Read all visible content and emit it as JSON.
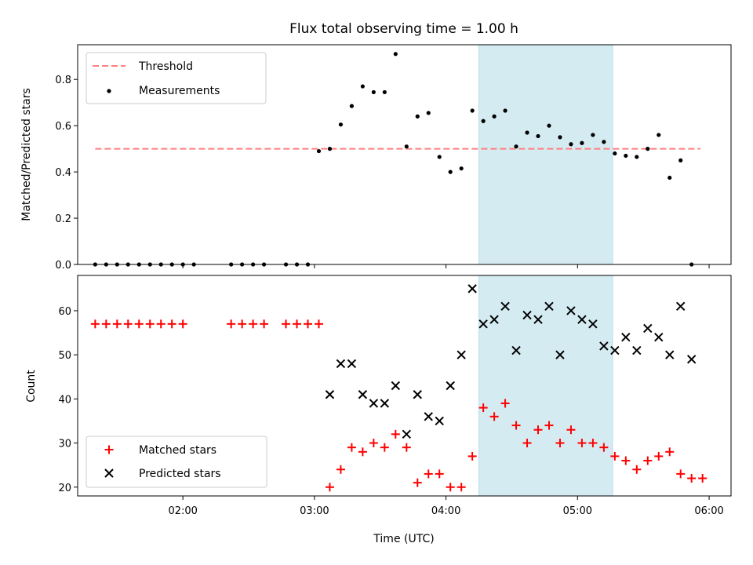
{
  "chart_data": [
    {
      "type": "scatter",
      "title": "Flux total observing time = 1.00 h",
      "xlabel": "",
      "ylabel": "Matched/Predicted stars",
      "ylim": [
        0,
        0.95
      ],
      "xlim": [
        "01:12",
        "06:10"
      ],
      "yticks": [
        "0.0",
        "0.2",
        "0.4",
        "0.6",
        "0.8"
      ],
      "grid": false,
      "legend_position": "top-left",
      "highlight_span": {
        "start": "04:15",
        "end": "05:16",
        "color": "#add8e6"
      },
      "threshold": {
        "name": "Threshold",
        "value": 0.5,
        "x_start": "01:20",
        "x_end": "05:56",
        "color": "#ff7f7f",
        "style": "dashed"
      },
      "series": [
        {
          "name": "Measurements",
          "color": "#000000",
          "marker": "dot",
          "x": [
            "01:20",
            "01:25",
            "01:30",
            "01:35",
            "01:40",
            "01:45",
            "01:50",
            "01:55",
            "02:00",
            "02:05",
            "02:22",
            "02:27",
            "02:32",
            "02:37",
            "02:47",
            "02:52",
            "02:57",
            "03:02",
            "03:07",
            "03:12",
            "03:17",
            "03:22",
            "03:27",
            "03:32",
            "03:37",
            "03:42",
            "03:47",
            "03:52",
            "03:57",
            "04:02",
            "04:07",
            "04:12",
            "04:17",
            "04:22",
            "04:27",
            "04:32",
            "04:37",
            "04:42",
            "04:47",
            "04:52",
            "04:57",
            "05:02",
            "05:07",
            "05:12",
            "05:17",
            "05:22",
            "05:27",
            "05:32",
            "05:37",
            "05:42",
            "05:47",
            "05:52"
          ],
          "y": [
            0,
            0,
            0,
            0,
            0,
            0,
            0,
            0,
            0,
            0,
            0,
            0,
            0,
            0,
            0,
            0,
            0,
            0.49,
            0.5,
            0.605,
            0.685,
            0.77,
            0.745,
            0.745,
            0.91,
            0.51,
            0.64,
            0.655,
            0.465,
            0.4,
            0.415,
            0.665,
            0.62,
            0.64,
            0.665,
            0.51,
            0.57,
            0.555,
            0.6,
            0.55,
            0.52,
            0.525,
            0.56,
            0.53,
            0.48,
            0.47,
            0.465,
            0.5,
            0.56,
            0.375,
            0.45,
            0
          ]
        }
      ]
    },
    {
      "type": "scatter",
      "xlabel": "Time (UTC)",
      "ylabel": "Count",
      "ylim": [
        18,
        68
      ],
      "xlim": [
        "01:12",
        "06:10"
      ],
      "xticks": [
        "02:00",
        "03:00",
        "04:00",
        "05:00",
        "06:00"
      ],
      "yticks": [
        "20",
        "30",
        "40",
        "50",
        "60"
      ],
      "grid": false,
      "legend_position": "bottom-left",
      "highlight_span": {
        "start": "04:15",
        "end": "05:16",
        "color": "#add8e6"
      },
      "series": [
        {
          "name": "Matched stars",
          "color": "#ff0000",
          "marker": "plus",
          "x": [
            "01:20",
            "01:25",
            "01:30",
            "01:35",
            "01:40",
            "01:45",
            "01:50",
            "01:55",
            "02:00",
            "02:22",
            "02:27",
            "02:32",
            "02:37",
            "02:47",
            "02:52",
            "02:57",
            "03:02",
            "03:07",
            "03:12",
            "03:17",
            "03:22",
            "03:27",
            "03:32",
            "03:37",
            "03:42",
            "03:47",
            "03:52",
            "03:57",
            "04:02",
            "04:07",
            "04:12",
            "04:17",
            "04:22",
            "04:27",
            "04:32",
            "04:37",
            "04:42",
            "04:47",
            "04:52",
            "04:57",
            "05:02",
            "05:07",
            "05:12",
            "05:17",
            "05:22",
            "05:27",
            "05:32",
            "05:37",
            "05:42",
            "05:47",
            "05:52",
            "05:57"
          ],
          "y": [
            57,
            57,
            57,
            57,
            57,
            57,
            57,
            57,
            57,
            57,
            57,
            57,
            57,
            57,
            57,
            57,
            57,
            20,
            24,
            29,
            28,
            30,
            29,
            32,
            29,
            21,
            23,
            23,
            20,
            20,
            27,
            38,
            36,
            39,
            34,
            30,
            33,
            34,
            30,
            33,
            30,
            30,
            29,
            27,
            26,
            24,
            26,
            27,
            28,
            23,
            22,
            22
          ]
        },
        {
          "name": "Predicted stars",
          "color": "#000000",
          "marker": "x",
          "x": [
            "03:07",
            "03:12",
            "03:17",
            "03:22",
            "03:27",
            "03:32",
            "03:37",
            "03:42",
            "03:47",
            "03:52",
            "03:57",
            "04:02",
            "04:07",
            "04:12",
            "04:17",
            "04:22",
            "04:27",
            "04:32",
            "04:37",
            "04:42",
            "04:47",
            "04:52",
            "04:57",
            "05:02",
            "05:07",
            "05:12",
            "05:17",
            "05:22",
            "05:27",
            "05:32",
            "05:37",
            "05:42",
            "05:47",
            "05:52"
          ],
          "y": [
            41,
            48,
            48,
            41,
            39,
            39,
            43,
            32,
            41,
            36,
            35,
            43,
            50,
            65,
            57,
            58,
            61,
            51,
            59,
            58,
            61,
            50,
            60,
            58,
            57,
            52,
            51,
            54,
            51,
            56,
            54,
            50,
            61,
            49
          ]
        }
      ]
    }
  ]
}
